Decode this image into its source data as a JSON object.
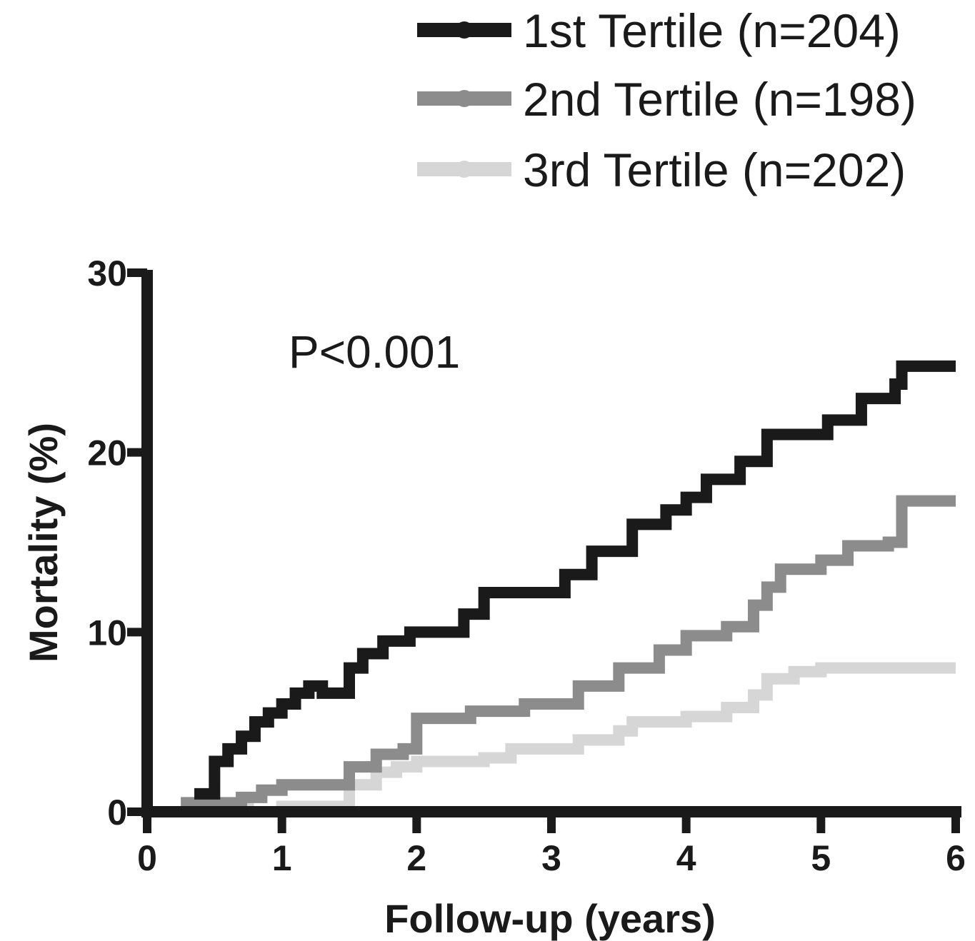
{
  "chart_data": {
    "type": "line",
    "step": true,
    "xlabel": "Follow-up (years)",
    "ylabel": "Mortality (%)",
    "xlim": [
      0,
      6
    ],
    "ylim": [
      0,
      30
    ],
    "xticks": [
      "0",
      "1",
      "2",
      "3",
      "4",
      "5",
      "6"
    ],
    "yticks": [
      "0",
      "10",
      "20",
      "30"
    ],
    "annotation": "P<0.001",
    "legend_position": "top-right",
    "grid": false,
    "series": [
      {
        "name": "1st Tertile (n=204)",
        "color": "#1a1a1a",
        "x": [
          0.35,
          0.5,
          0.6,
          0.7,
          0.8,
          0.9,
          1.0,
          1.1,
          1.2,
          1.3,
          1.5,
          1.6,
          1.75,
          1.95,
          2.2,
          2.35,
          2.5,
          2.95,
          3.1,
          3.3,
          3.6,
          3.85,
          4.0,
          4.15,
          4.4,
          4.6,
          5.0,
          5.05,
          5.3,
          5.55,
          5.6,
          6.0
        ],
        "y": [
          1.0,
          2.8,
          3.5,
          4.2,
          5.0,
          5.5,
          6.0,
          6.6,
          7.0,
          6.6,
          8.0,
          8.8,
          9.5,
          10.0,
          10.0,
          11.0,
          12.2,
          12.2,
          13.2,
          14.5,
          16.0,
          16.8,
          17.5,
          18.5,
          19.5,
          21.0,
          21.0,
          21.8,
          23.0,
          23.8,
          24.8,
          24.8
        ]
      },
      {
        "name": "2nd Tertile (n=198)",
        "color": "#8c8c8c",
        "x": [
          0.25,
          0.4,
          0.7,
          0.85,
          1.0,
          1.4,
          1.5,
          1.7,
          1.9,
          2.0,
          2.4,
          2.8,
          3.2,
          3.5,
          3.8,
          4.0,
          4.3,
          4.5,
          4.6,
          4.7,
          5.0,
          5.2,
          5.5,
          5.6,
          6.0
        ],
        "y": [
          0.5,
          0.5,
          0.8,
          1.2,
          1.5,
          1.5,
          2.5,
          3.2,
          3.5,
          5.2,
          5.6,
          6.0,
          7.0,
          8.0,
          9.0,
          9.8,
          10.3,
          11.5,
          12.5,
          13.5,
          14.0,
          14.8,
          15.0,
          17.3,
          17.3
        ]
      },
      {
        "name": "3rd Tertile (n=202)",
        "color": "#d6d6d6",
        "x": [
          0.25,
          0.5,
          0.75,
          1.0,
          1.4,
          1.5,
          1.7,
          1.85,
          2.0,
          2.5,
          2.7,
          3.2,
          3.5,
          3.6,
          4.0,
          4.3,
          4.5,
          4.6,
          4.8,
          5.0,
          6.0
        ],
        "y": [
          0.5,
          0.3,
          0.0,
          0.3,
          0.3,
          1.5,
          2.2,
          2.5,
          2.8,
          3.0,
          3.5,
          4.0,
          4.5,
          5.0,
          5.3,
          5.8,
          6.5,
          7.4,
          7.8,
          8.0,
          8.0
        ]
      }
    ]
  }
}
